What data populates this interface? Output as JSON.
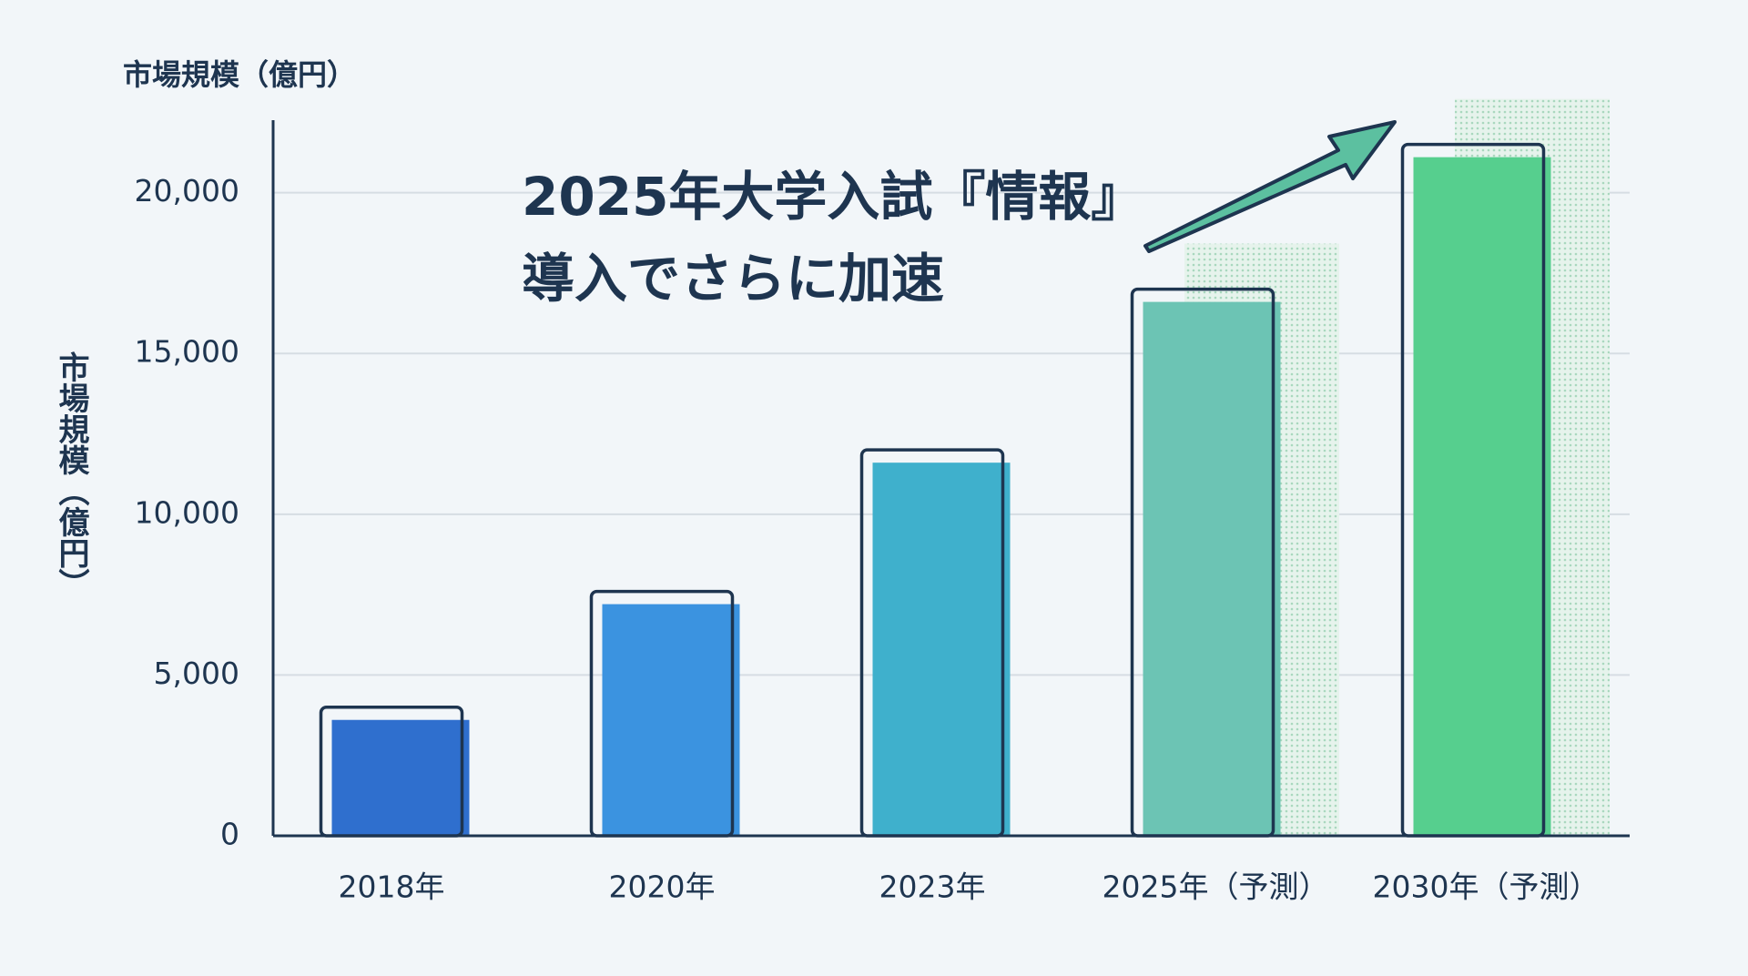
{
  "chart_data": {
    "type": "bar",
    "title": "市場規模（億円）",
    "y_label": "市場規模（億円）",
    "annotation": [
      "2025年大学入試『情報』",
      "導入でさらに加速"
    ],
    "categories": [
      "2018年",
      "2020年",
      "2023年",
      "2025年（予測）",
      "2030年（予測）"
    ],
    "values": [
      4000,
      7600,
      12000,
      17000,
      21500
    ],
    "colors": [
      "#2f6fce",
      "#3b93e0",
      "#3fb0cc",
      "#6cc4b4",
      "#56cf8e"
    ],
    "ylim": [
      0,
      22000
    ],
    "yticks": [
      0,
      {
        "value": 5000,
        "label": "5,000"
      },
      {
        "value": 10000,
        "label": "10,000"
      },
      {
        "value": 15000,
        "label": "15,000"
      },
      {
        "value": 20000,
        "label": "20,000"
      }
    ],
    "grid": true
  }
}
